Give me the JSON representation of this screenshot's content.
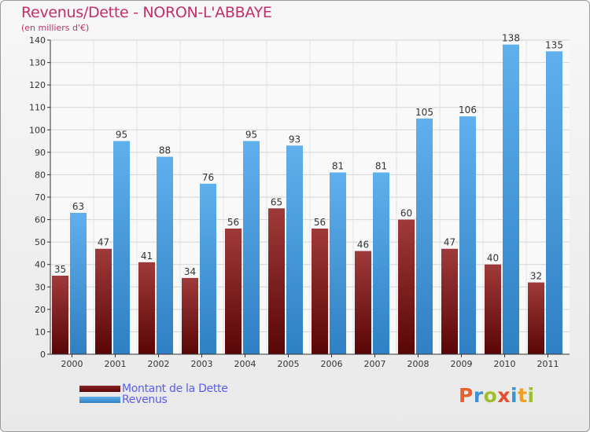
{
  "chart_data": {
    "type": "bar",
    "title": "Revenus/Dette - NORON-L'ABBAYE",
    "subtitle": "(en milliers d'€)",
    "categories": [
      "2000",
      "2001",
      "2002",
      "2003",
      "2004",
      "2005",
      "2006",
      "2007",
      "2008",
      "2009",
      "2010",
      "2011"
    ],
    "series": [
      {
        "name": "Montant de la Dette",
        "color": "#7a1a1a",
        "values": [
          35,
          47,
          41,
          34,
          56,
          65,
          56,
          46,
          60,
          47,
          40,
          32
        ]
      },
      {
        "name": "Revenus",
        "color": "#4aa0e0",
        "values": [
          63,
          95,
          88,
          76,
          95,
          93,
          81,
          81,
          105,
          106,
          138,
          135
        ]
      }
    ],
    "yticks": [
      0,
      10,
      20,
      30,
      40,
      50,
      60,
      70,
      80,
      90,
      100,
      110,
      120,
      130,
      140
    ],
    "ylim": [
      0,
      140
    ],
    "grid": true,
    "legend": "bottom-left"
  },
  "brand": {
    "logo_text": "Proxiti",
    "logo_letters": [
      {
        "ch": "P",
        "color": "#e8602c"
      },
      {
        "ch": "r",
        "color": "#3a93d3"
      },
      {
        "ch": "o",
        "color": "#9cbf2b"
      },
      {
        "ch": "x",
        "color": "#e84c2c"
      },
      {
        "ch": "i",
        "color": "#3a93d3"
      },
      {
        "ch": "t",
        "color": "#f0a020"
      },
      {
        "ch": "i",
        "color": "#9cbf2b"
      }
    ]
  }
}
